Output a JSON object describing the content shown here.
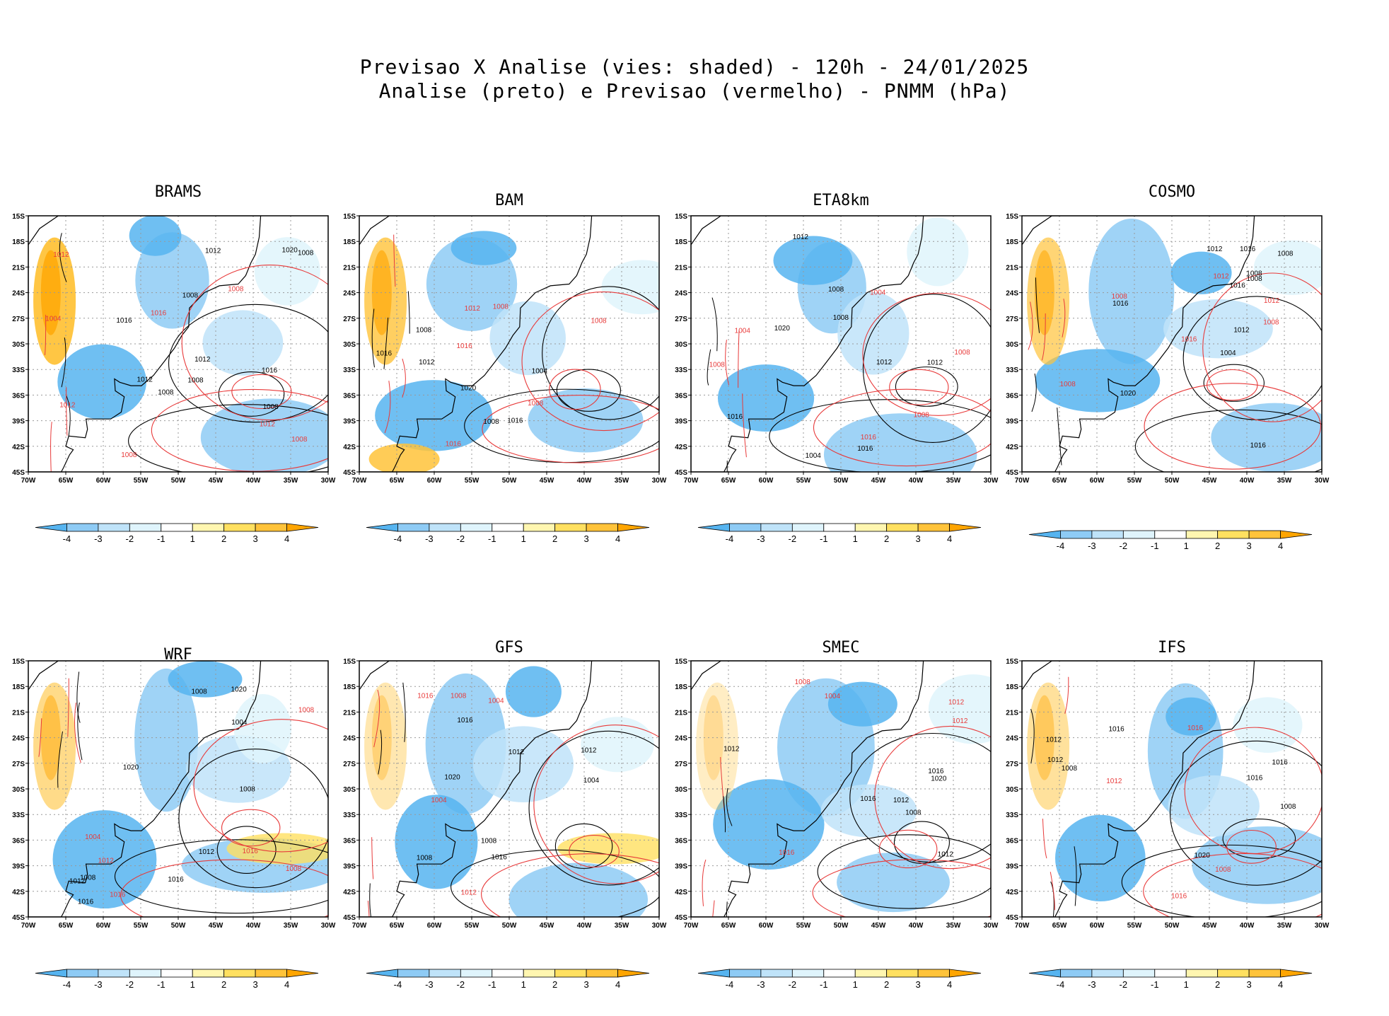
{
  "title": {
    "line1": "Previsao X Analise (vies: shaded) - 120h - 24/01/2025",
    "line2": "Analise (preto) e Previsao (vermelho) - PNMM (hPa)"
  },
  "axes": {
    "lat_labels": [
      "15S",
      "18S",
      "21S",
      "24S",
      "27S",
      "30S",
      "33S",
      "36S",
      "39S",
      "42S",
      "45S"
    ],
    "lon_labels": [
      "70W",
      "65W",
      "60W",
      "55W",
      "50W",
      "45W",
      "40W",
      "35W",
      "30W"
    ]
  },
  "colorbar": {
    "labels": [
      "-4",
      "-3",
      "-2",
      "-1",
      "1",
      "2",
      "3",
      "4"
    ],
    "colors": [
      "#56b4f0",
      "#8ecbf5",
      "#bfe3f9",
      "#dff4fc",
      "#ffffff",
      "#fff6b0",
      "#ffe060",
      "#ffc33a",
      "#ffa500"
    ]
  },
  "colors": {
    "analysis_contour": "#000000",
    "forecast_contour": "#e83a3a"
  },
  "panels": [
    {
      "name": "BRAMS",
      "labels_black": [
        "1008",
        "1008",
        "1012",
        "1016",
        "1008",
        "1008",
        "1012",
        "1020",
        "1012",
        "1008",
        "1016"
      ],
      "labels_red": [
        "1008",
        "1012",
        "1008",
        "1012",
        "1016",
        "1008",
        "1012",
        "1004"
      ]
    },
    {
      "name": "BAM",
      "labels_black": [
        "1008",
        "1012",
        "1016",
        "1008",
        "1004",
        "1016",
        "1020"
      ],
      "labels_red": [
        "1008",
        "1012",
        "1016",
        "1008",
        "1008",
        "1016"
      ]
    },
    {
      "name": "ETA8km",
      "labels_black": [
        "1012",
        "1008",
        "1004",
        "1008",
        "1012",
        "1016",
        "1016",
        "1020",
        "1012"
      ],
      "labels_red": [
        "1008",
        "1004",
        "1008",
        "1016",
        "1004",
        "1008"
      ]
    },
    {
      "name": "COSMO",
      "labels_black": [
        "1016",
        "1008",
        "1012",
        "1016",
        "1004",
        "1012",
        "1016",
        "1008",
        "1020",
        "1016",
        "1008"
      ],
      "labels_red": [
        "1008",
        "1012",
        "1012",
        "1008",
        "1016",
        "1008"
      ]
    },
    {
      "name": "WRF",
      "labels_black": [
        "1020",
        "1016",
        "1008",
        "1012",
        "1008",
        "1004",
        "1008",
        "1012",
        "1020",
        "1016"
      ],
      "labels_red": [
        "1008",
        "1012",
        "1004",
        "1016",
        "1016",
        "1008"
      ]
    },
    {
      "name": "GFS",
      "labels_black": [
        "1008",
        "1016",
        "1012",
        "1008",
        "1004",
        "1012",
        "1016",
        "1020"
      ],
      "labels_red": [
        "1008",
        "1004",
        "1016",
        "1012",
        "1004"
      ]
    },
    {
      "name": "SMEC",
      "labels_black": [
        "1016",
        "1008",
        "1012",
        "1012",
        "1016",
        "1020",
        "1012"
      ],
      "labels_red": [
        "1012",
        "1016",
        "1012",
        "1008",
        "1004"
      ]
    },
    {
      "name": "IFS",
      "labels_black": [
        "1012",
        "1008",
        "1016",
        "1012",
        "1016",
        "1008",
        "1016",
        "1020"
      ],
      "labels_red": [
        "1012",
        "1008",
        "1016",
        "1016"
      ]
    }
  ]
}
